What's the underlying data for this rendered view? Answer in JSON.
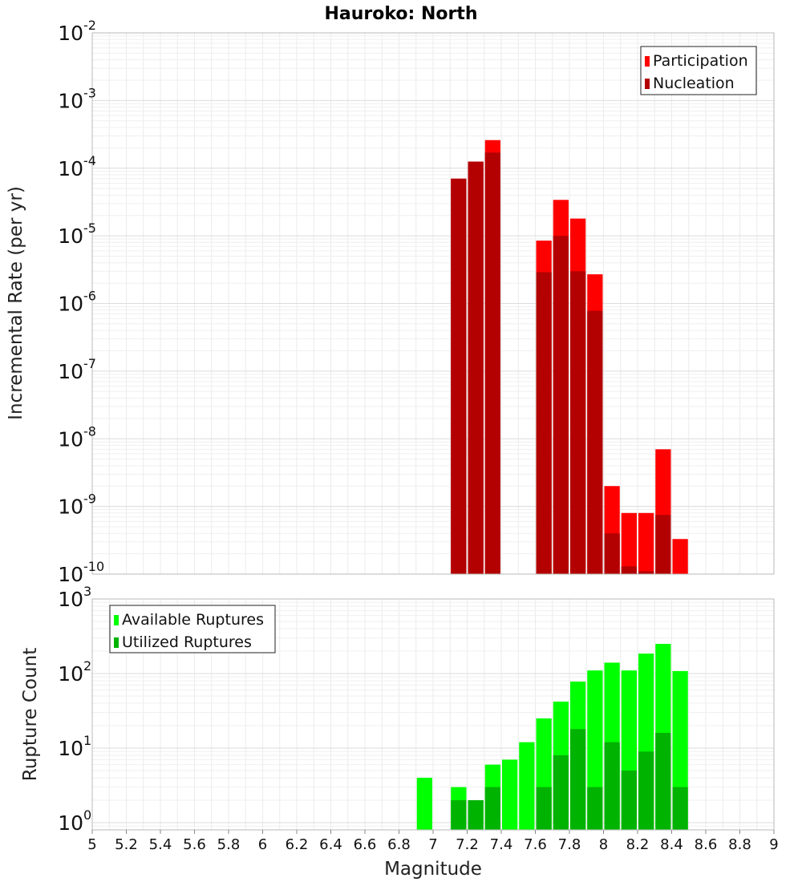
{
  "chart_data": [
    {
      "type": "bar",
      "title": "Hauroko: North",
      "ylabel": "Incremental Rate (per yr)",
      "xlabel": "",
      "y_scale": "log",
      "ylim": [
        1e-10,
        0.01
      ],
      "xlim": [
        5,
        9
      ],
      "bin_width": 0.1,
      "y_tick_bases": [
        "10",
        "10",
        "10",
        "10",
        "10",
        "10",
        "10",
        "10",
        "10"
      ],
      "y_tick_exponents": [
        "-10",
        "-9",
        "-8",
        "-7",
        "-6",
        "-5",
        "-4",
        "-3",
        "-2"
      ],
      "grid": true,
      "legend_position": "top-right",
      "series": [
        {
          "name": "Participation",
          "color": "#ff0000",
          "x": [
            7.15,
            7.25,
            7.35,
            7.65,
            7.75,
            7.85,
            7.95,
            8.05,
            8.15,
            8.25,
            8.35,
            8.45
          ],
          "values": [
            7e-05,
            0.000125,
            0.00026,
            8.5e-06,
            3.4e-05,
            1.8e-05,
            2.7e-06,
            2e-09,
            8e-10,
            8e-10,
            7e-09,
            3.3e-10
          ]
        },
        {
          "name": "Nucleation",
          "color": "#b30000",
          "x": [
            7.15,
            7.25,
            7.35,
            7.65,
            7.75,
            7.85,
            7.95,
            8.05,
            8.15,
            8.25,
            8.35
          ],
          "values": [
            7e-05,
            0.000125,
            0.00017,
            2.9e-06,
            1e-05,
            3e-06,
            7.8e-07,
            4e-10,
            1.3e-10,
            1.1e-10,
            7.5e-10
          ]
        }
      ]
    },
    {
      "type": "bar",
      "title": "",
      "ylabel": "Rupture Count",
      "xlabel": "Magnitude",
      "y_scale": "log",
      "ylim": [
        0.8,
        1000
      ],
      "xlim": [
        5,
        9
      ],
      "bin_width": 0.1,
      "y_tick_bases": [
        "10",
        "10",
        "10",
        "10"
      ],
      "y_tick_exponents": [
        "0",
        "1",
        "2",
        "3"
      ],
      "x_ticks": [
        "5",
        "5.2",
        "5.4",
        "5.6",
        "5.8",
        "6",
        "6.2",
        "6.4",
        "6.6",
        "6.8",
        "7",
        "7.2",
        "7.4",
        "7.6",
        "7.8",
        "8",
        "8.2",
        "8.4",
        "8.6",
        "8.8",
        "9"
      ],
      "grid": true,
      "legend_position": "top-left",
      "series": [
        {
          "name": "Available Ruptures",
          "color": "#00ff00",
          "x": [
            6.95,
            7.15,
            7.25,
            7.35,
            7.45,
            7.55,
            7.65,
            7.75,
            7.85,
            7.95,
            8.05,
            8.15,
            8.25,
            8.35,
            8.45
          ],
          "values": [
            4,
            3,
            2,
            6,
            7,
            12,
            25,
            42,
            78,
            110,
            140,
            110,
            185,
            250,
            108
          ]
        },
        {
          "name": "Utilized Ruptures",
          "color": "#00b300",
          "x": [
            7.15,
            7.25,
            7.35,
            7.65,
            7.75,
            7.85,
            7.95,
            8.05,
            8.15,
            8.25,
            8.35,
            8.45
          ],
          "values": [
            2,
            2,
            3,
            3,
            8,
            18,
            3,
            12,
            5,
            9,
            16,
            3
          ]
        }
      ]
    }
  ]
}
